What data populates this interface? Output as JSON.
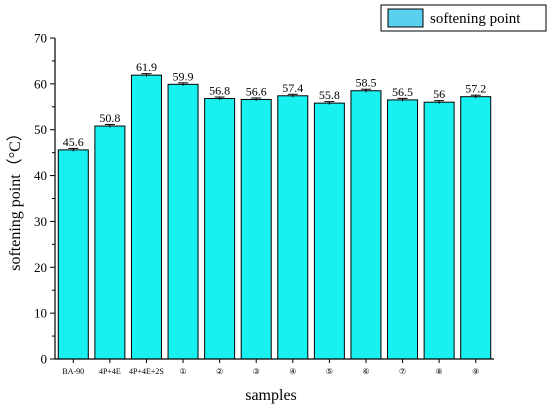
{
  "chart_data": {
    "type": "bar",
    "categories": [
      "BA-90",
      "4P+4E",
      "4P+4E+2S",
      "①",
      "②",
      "③",
      "④",
      "⑤",
      "⑥",
      "⑦",
      "⑧",
      "⑨"
    ],
    "series": [
      {
        "name": "softening point",
        "values": [
          45.6,
          50.8,
          61.9,
          59.9,
          56.8,
          56.6,
          57.4,
          55.8,
          58.5,
          56.5,
          56,
          57.2
        ],
        "value_labels": [
          "45.6",
          "50.8",
          "61.9",
          "59.9",
          "56.8",
          "56.6",
          "57.4",
          "55.8",
          "58.5",
          "56.5",
          "56",
          "57.2"
        ],
        "color": "#19f0f0"
      }
    ],
    "xlabel": "samples",
    "ylabel": "softening point（°C）",
    "ylim": [
      0,
      70
    ],
    "yticks": [
      0,
      10,
      20,
      30,
      40,
      50,
      60,
      70
    ],
    "ytick_labels": [
      "0",
      "10",
      "20",
      "30",
      "40",
      "50",
      "60",
      "70"
    ],
    "error_bars": true,
    "grid": false,
    "legend_position": "top-right"
  },
  "legend": {
    "label": "softening point",
    "swatch_color": "#5bcfee"
  }
}
